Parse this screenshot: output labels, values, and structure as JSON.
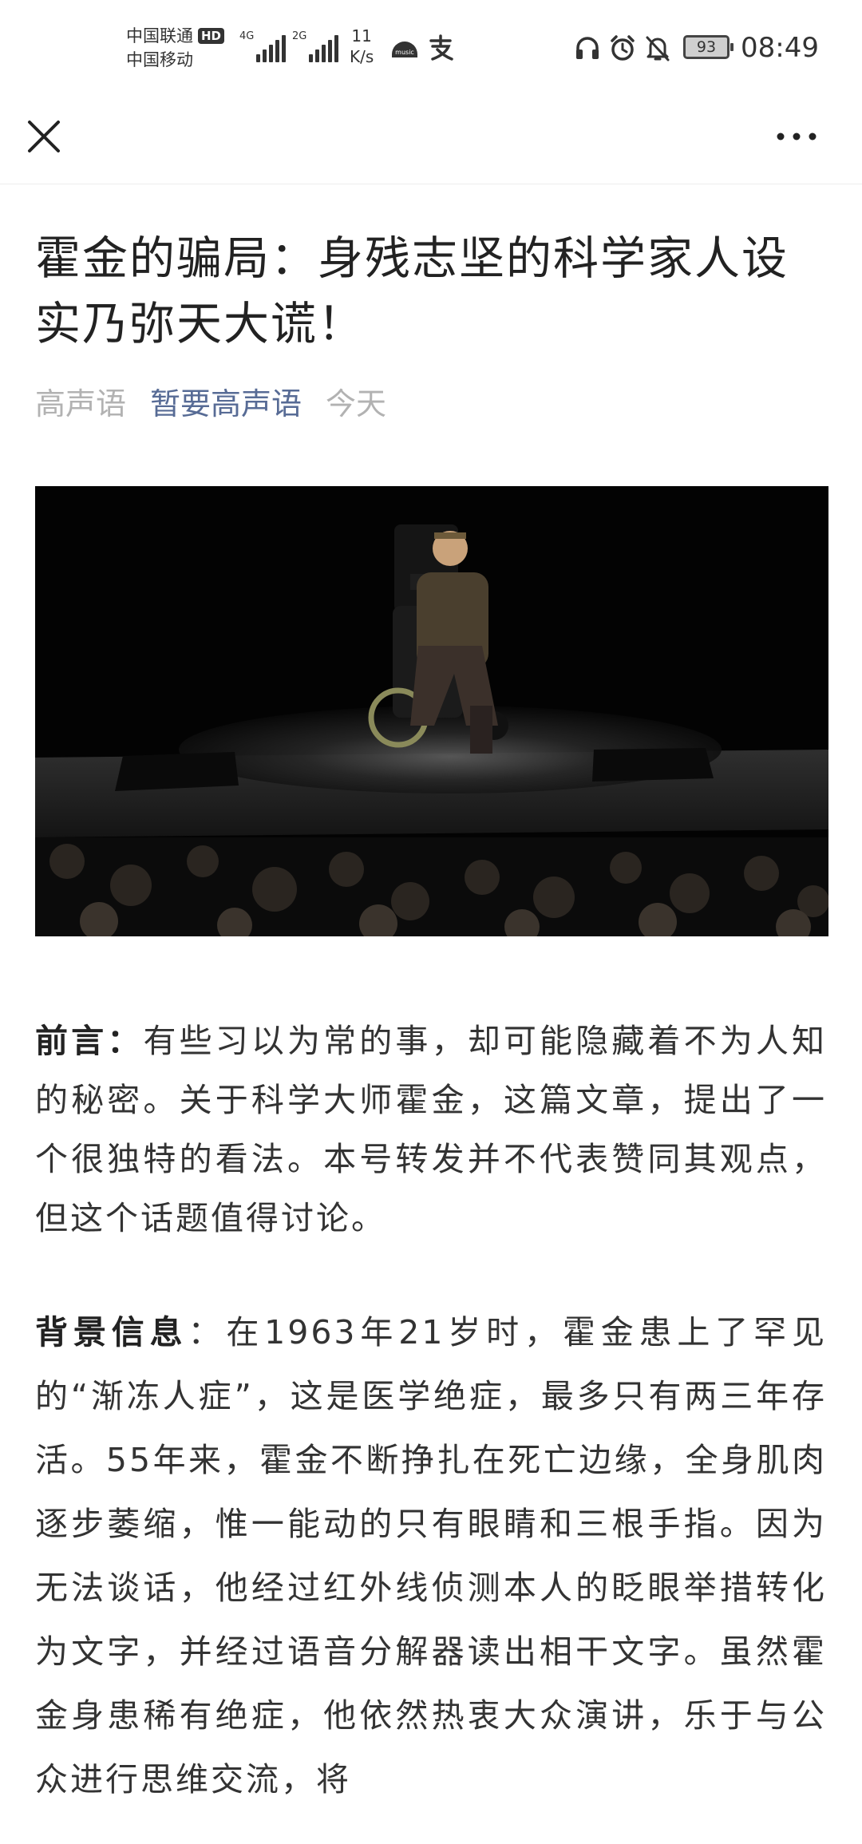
{
  "status_bar": {
    "carrier_1": "中国联通",
    "hd_badge": "HD",
    "carrier_2": "中国移动",
    "signal_1_tag": "4G",
    "signal_2_tag": "2G",
    "net_speed_value": "11",
    "net_speed_unit": "K/s",
    "battery_level": "93",
    "time": "08:49"
  },
  "nav": {
    "close_icon": "close-icon",
    "more_icon": "more-icon"
  },
  "article": {
    "title": "霍金的骗局：身残志坚的科学家人设实乃弥天大谎！",
    "author": "高声语",
    "account_name": "暂要高声语",
    "date": "今天",
    "intro_label": "前言：",
    "intro_text": "有些习以为常的事，却可能隐藏着不为人知的秘密。关于科学大师霍金，这篇文章，提出了一个很独特的看法。本号转发并不代表赞同其观点，但这个话题值得讨论。",
    "background_label": "背景信息",
    "background_text": "：在1963年21岁时，霍金患上了罕见的“渐冻人症”，这是医学绝症，最多只有两三年存活。55年来，霍金不断挣扎在死亡边缘，全身肌肉逐步萎缩，惟一能动的只有眼睛和三根手指。因为无法谈话，他经过红外线侦测本人的眨眼举措转化为文字，并经过语音分解器读出相干文字。虽然霍金身患稀有绝症，他依然热衷大众演讲，乐于与公众进行思维交流，将"
  },
  "colors": {
    "account_link": "#576b95",
    "meta_gray": "#b2b2b2",
    "text": "#333333"
  }
}
